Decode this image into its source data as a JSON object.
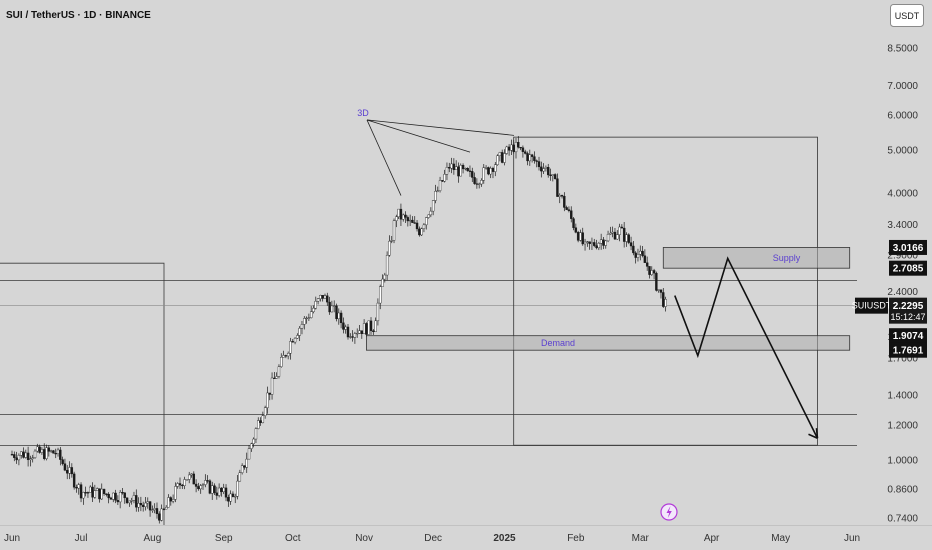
{
  "header": {
    "title": "SUI / TetherUS · 1D · BINANCE",
    "currency_button": "USDT"
  },
  "price_axis": {
    "ticks": [
      "8.5000",
      "7.0000",
      "6.0000",
      "5.0000",
      "4.0000",
      "3.4000",
      "2.9000",
      "2.4000",
      "1.9000",
      "1.7000",
      "1.4000",
      "1.2000",
      "1.0000",
      "0.8600",
      "0.7400"
    ]
  },
  "price_tags": [
    {
      "id": "tag-supply-top",
      "value": "3.0166",
      "price": 3.0166,
      "style": "black"
    },
    {
      "id": "tag-supply-bottom",
      "value": "2.7085",
      "price": 2.7085,
      "style": "black"
    },
    {
      "id": "tag-last-price",
      "symbol": "SUIUSDT",
      "value": "2.2295",
      "countdown": "15:12:47",
      "price": 2.2295,
      "style": "dark"
    },
    {
      "id": "tag-demand-top",
      "value": "1.9074",
      "price": 1.9074,
      "style": "black"
    },
    {
      "id": "tag-demand-bottom",
      "value": "1.7691",
      "price": 1.7691,
      "style": "black"
    }
  ],
  "time_axis": {
    "labels": [
      {
        "text": "Jun",
        "bold": false
      },
      {
        "text": "Jul",
        "bold": false
      },
      {
        "text": "Aug",
        "bold": false
      },
      {
        "text": "Sep",
        "bold": false
      },
      {
        "text": "Oct",
        "bold": false
      },
      {
        "text": "Nov",
        "bold": false
      },
      {
        "text": "Dec",
        "bold": false
      },
      {
        "text": "2025",
        "bold": true
      },
      {
        "text": "Feb",
        "bold": false
      },
      {
        "text": "Mar",
        "bold": false
      },
      {
        "text": "Apr",
        "bold": false
      },
      {
        "text": "May",
        "bold": false
      },
      {
        "text": "Jun",
        "bold": false
      }
    ]
  },
  "annotations": {
    "supply_label": "Supply",
    "demand_label": "Demand",
    "timeframe_label": "3D"
  },
  "chart_data": {
    "type": "candlestick",
    "title": "SUI / TetherUS · 1D · BINANCE",
    "y_scale": "log",
    "ylim": [
      0.72,
      9.5
    ],
    "last_price": 2.2295,
    "zones": [
      {
        "name": "Supply",
        "low": 2.7085,
        "high": 3.0166,
        "from": "2025-03-11",
        "to": "2025-05-31"
      },
      {
        "name": "Demand",
        "low": 1.7691,
        "high": 1.9074,
        "from": "2024-11-02",
        "to": "2025-05-31"
      }
    ],
    "horizontal_levels": [
      2.55,
      1.27,
      1.08
    ],
    "range_box": {
      "low": 1.08,
      "high": 5.35,
      "from": "2025-01-05",
      "to": "2025-05-17"
    },
    "projection_path": [
      {
        "date": "2025-03-16",
        "price": 2.35
      },
      {
        "date": "2025-03-26",
        "price": 1.72
      },
      {
        "date": "2025-04-08",
        "price": 2.85
      },
      {
        "date": "2025-05-17",
        "price": 1.12
      }
    ],
    "approx_closes": [
      {
        "date": "2024-06-01",
        "close": 1.03
      },
      {
        "date": "2024-06-20",
        "close": 1.04
      },
      {
        "date": "2024-07-01",
        "close": 0.85
      },
      {
        "date": "2024-07-20",
        "close": 0.83
      },
      {
        "date": "2024-08-05",
        "close": 0.75
      },
      {
        "date": "2024-08-15",
        "close": 0.92
      },
      {
        "date": "2024-09-05",
        "close": 0.82
      },
      {
        "date": "2024-09-20",
        "close": 1.4
      },
      {
        "date": "2024-10-01",
        "close": 1.9
      },
      {
        "date": "2024-10-14",
        "close": 2.35
      },
      {
        "date": "2024-10-25",
        "close": 1.95
      },
      {
        "date": "2024-11-05",
        "close": 2.0
      },
      {
        "date": "2024-11-15",
        "close": 3.6
      },
      {
        "date": "2024-11-25",
        "close": 3.3
      },
      {
        "date": "2024-12-08",
        "close": 4.6
      },
      {
        "date": "2024-12-20",
        "close": 4.3
      },
      {
        "date": "2025-01-05",
        "close": 5.1
      },
      {
        "date": "2025-01-20",
        "close": 4.5
      },
      {
        "date": "2025-02-05",
        "close": 3.0
      },
      {
        "date": "2025-02-20",
        "close": 3.3
      },
      {
        "date": "2025-03-05",
        "close": 2.7
      },
      {
        "date": "2025-03-12",
        "close": 2.23
      }
    ]
  }
}
